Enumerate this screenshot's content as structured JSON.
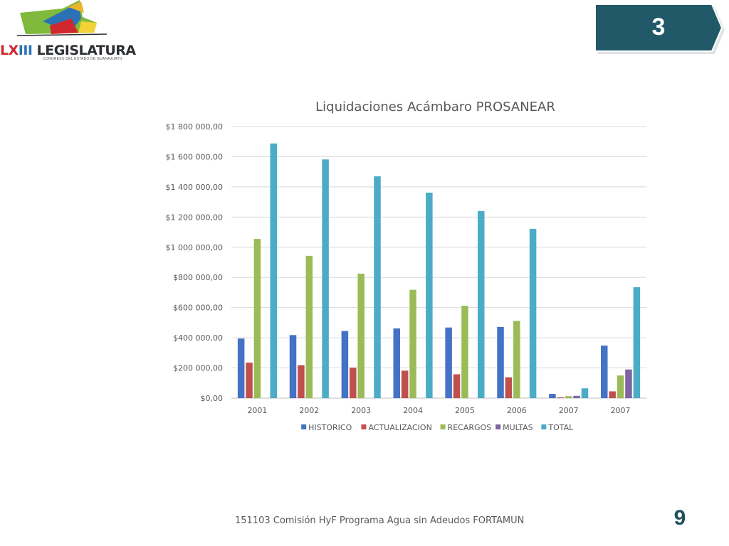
{
  "logo": {
    "wordmark_prefix": "LX",
    "wordmark_mid": "III",
    "wordmark": "LEGISLATURA",
    "subtitle": "CONGRESO DEL ESTADO DE GUANAJUATO"
  },
  "badge": {
    "number": "3",
    "color": "#215968"
  },
  "chart_data": {
    "type": "bar",
    "title": "Liquidaciones Acámbaro PROSANEAR",
    "xlabel": "",
    "ylabel": "",
    "ylim": [
      0,
      1800000
    ],
    "yticks": [
      0,
      200000,
      400000,
      600000,
      800000,
      1000000,
      1200000,
      1400000,
      1600000,
      1800000
    ],
    "ytick_labels": [
      "$0,00",
      "$200 000,00",
      "$400 000,00",
      "$600 000,00",
      "$800 000,00",
      "$1 000 000,00",
      "$1 200 000,00",
      "$1 400 000,00",
      "$1 600 000,00",
      "$1 800 000,00"
    ],
    "categories": [
      "2001",
      "2002",
      "2003",
      "2004",
      "2005",
      "2006",
      "2007",
      "2007"
    ],
    "grid": true,
    "legend_position": "bottom",
    "series": [
      {
        "name": "HISTORICO",
        "color": "#4472C4",
        "values": [
          395000,
          418000,
          445000,
          462000,
          468000,
          472000,
          28000,
          348000
        ]
      },
      {
        "name": "ACTUALIZACION",
        "color": "#C0504D",
        "values": [
          235000,
          218000,
          202000,
          182000,
          158000,
          138000,
          5000,
          45000
        ]
      },
      {
        "name": "RECARGOS",
        "color": "#9BBB59",
        "values": [
          1055000,
          943000,
          825000,
          718000,
          612000,
          512000,
          13000,
          150000
        ]
      },
      {
        "name": "MULTAS",
        "color": "#8064A2",
        "values": [
          0,
          0,
          0,
          0,
          0,
          0,
          15000,
          190000
        ]
      },
      {
        "name": "TOTAL",
        "color": "#4BACC6",
        "values": [
          1688000,
          1582000,
          1470000,
          1362000,
          1240000,
          1122000,
          65000,
          735000
        ]
      }
    ]
  },
  "footer": {
    "text": "151103 Comisión HyF Programa Agua sin Adeudos FORTAMUN"
  },
  "page": {
    "number": "9"
  }
}
